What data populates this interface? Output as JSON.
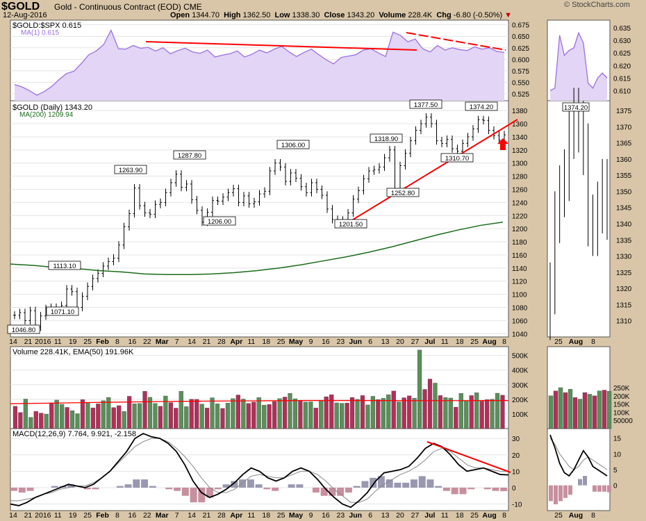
{
  "header": {
    "symbol": "$GOLD",
    "description": "Gold - Continuous Contract (EOD)",
    "exchange": "CME",
    "date": "12-Aug-2016",
    "open_label": "Open",
    "open": "1344.70",
    "high_label": "High",
    "high": "1362.50",
    "low_label": "Low",
    "low": "1338.30",
    "close_label": "Close",
    "close": "1343.20",
    "volume_label": "Volume",
    "volume": "228.4K",
    "chg_label": "Chg",
    "chg": "-6.80 (-0.50%)",
    "brand": "© StockCharts.com"
  },
  "colors": {
    "background": "#d9c6a8",
    "ratio": "#9d6ee0",
    "ratio_fill": "#e2d5f5",
    "trend": "#ff0000",
    "ma200": "#1a6b1a",
    "vol_up": "#5a8f5a",
    "vol_down": "#b03058",
    "macd": "#000000",
    "signal": "#888888",
    "hist_pos": "#9898b0",
    "hist_neg": "#c7909e"
  },
  "chart_data": [
    {
      "type": "line",
      "panel": "ratio",
      "title": "$GOLD:$SPX 0.615",
      "series": [
        {
          "name": "$GOLD:$SPX",
          "values": [
            0.545,
            0.54,
            0.532,
            0.522,
            0.53,
            0.541,
            0.556,
            0.569,
            0.574,
            0.591,
            0.61,
            0.618,
            0.632,
            0.663,
            0.623,
            0.622,
            0.63,
            0.624,
            0.626,
            0.618,
            0.625,
            0.612,
            0.619,
            0.624,
            0.616,
            0.613,
            0.62,
            0.605,
            0.609,
            0.612,
            0.618,
            0.605,
            0.611,
            0.62,
            0.614,
            0.622,
            0.628,
            0.616,
            0.606,
            0.615,
            0.622,
            0.61,
            0.599,
            0.59,
            0.604,
            0.607,
            0.61,
            0.62,
            0.623,
            0.614,
            0.606,
            0.659,
            0.652,
            0.638,
            0.644,
            0.623,
            0.616,
            0.63,
            0.62,
            0.625,
            0.621,
            0.619,
            0.627,
            0.622,
            0.625,
            0.617,
            0.615
          ]
        },
        {
          "name": "MA(1) 0.615",
          "values": []
        }
      ],
      "ylim": [
        0.51,
        0.685
      ],
      "yticks": [
        0.525,
        0.55,
        0.575,
        0.6,
        0.625,
        0.65,
        0.675
      ],
      "inset": {
        "values": [
          0.61,
          0.611,
          0.632,
          0.624,
          0.626,
          0.627,
          0.633,
          0.629,
          0.613,
          0.611,
          0.615,
          0.617,
          0.615
        ],
        "yticks": [
          0.61,
          0.615,
          0.62,
          0.625,
          0.63,
          0.635
        ],
        "ylim": [
          0.606,
          0.638
        ]
      }
    },
    {
      "type": "ohlc",
      "panel": "price",
      "title": "$GOLD (Daily) 1343.20",
      "ma_label": "MA(200) 1209.94",
      "series": [
        {
          "name": "$GOLD",
          "close": [
            1068,
            1072,
            1060,
            1075,
            1050,
            1067,
            1078,
            1080,
            1077,
            1083,
            1108,
            1104,
            1080,
            1097,
            1112,
            1124,
            1132,
            1143,
            1150,
            1155,
            1175,
            1203,
            1223,
            1262,
            1235,
            1224,
            1222,
            1237,
            1240,
            1255,
            1270,
            1283,
            1263,
            1268,
            1244,
            1228,
            1210,
            1225,
            1243,
            1242,
            1248,
            1255,
            1261,
            1240,
            1250,
            1238,
            1241,
            1253,
            1257,
            1288,
            1300,
            1294,
            1272,
            1285,
            1277,
            1264,
            1255,
            1270,
            1260,
            1251,
            1230,
            1214,
            1213,
            1207,
            1224,
            1245,
            1258,
            1276,
            1288,
            1290,
            1294,
            1308,
            1320,
            1260,
            1296,
            1315,
            1334,
            1350,
            1360,
            1370,
            1360,
            1334,
            1330,
            1336,
            1322,
            1318,
            1330,
            1340,
            1352,
            1366,
            1365,
            1350,
            1342,
            1335,
            1343
          ]
        },
        {
          "name": "MA(200)",
          "values": [
            1146,
            1144,
            1141,
            1139,
            1136,
            1134,
            1131,
            1130,
            1130,
            1131,
            1133,
            1136,
            1140,
            1145,
            1151,
            1157,
            1164,
            1172,
            1181,
            1190,
            1198,
            1205,
            1209.94
          ]
        }
      ],
      "ylim": [
        1035,
        1395
      ],
      "yticks": [
        1040,
        1060,
        1080,
        1100,
        1120,
        1140,
        1160,
        1180,
        1200,
        1220,
        1240,
        1260,
        1280,
        1300,
        1320,
        1340,
        1360,
        1380
      ],
      "annotations": [
        "1046.80",
        "1113.10",
        "1071.10",
        "1263.90",
        "1287.80",
        "1206.00",
        "1306.00",
        "1318.90",
        "1201.50",
        "1252.80",
        "1377.50",
        "1310.70",
        "1374.20"
      ],
      "inset": {
        "close": [
          1320,
          1342,
          1350,
          1355,
          1368,
          1374,
          1370,
          1363,
          1341,
          1338,
          1345,
          1352,
          1343
        ],
        "yticks": [
          1310,
          1315,
          1320,
          1325,
          1330,
          1335,
          1340,
          1345,
          1350,
          1355,
          1360,
          1365,
          1370,
          1375
        ],
        "ylim": [
          1305,
          1378
        ],
        "annotation": "1374.20"
      }
    },
    {
      "type": "bar",
      "panel": "volume",
      "title": "Volume 228.41K, EMA(50) 191.96K",
      "series": [
        {
          "name": "Volume",
          "values": [
            153,
            110,
            202,
            77,
            118,
            106,
            99,
            171,
            195,
            166,
            145,
            123,
            102,
            198,
            180,
            142,
            169,
            191,
            213,
            144,
            157,
            117,
            221,
            170,
            172,
            255,
            214,
            172,
            153,
            223,
            178,
            140,
            255,
            150,
            201,
            200,
            168,
            141,
            211,
            170,
            138,
            175,
            205,
            230,
            202,
            172,
            182,
            212,
            161,
            165,
            185,
            205,
            216,
            241,
            204,
            193,
            182,
            183,
            141,
            191,
            218,
            232,
            176,
            173,
            175,
            213,
            200,
            226,
            162,
            221,
            198,
            207,
            232,
            257,
            183,
            211,
            224,
            208,
            537,
            268,
            339,
            311,
            226,
            213,
            209,
            147,
            241,
            191,
            226,
            245,
            187,
            198,
            201,
            242,
            228.41
          ]
        }
      ],
      "ema": [
        170,
        175,
        180,
        185,
        188,
        190,
        192,
        192,
        191,
        191,
        192
      ],
      "ylim": [
        0,
        560
      ],
      "ytick_labels": [
        "100K",
        "200K",
        "300K",
        "400K",
        "500K"
      ],
      "inset_ytick_labels": [
        "50000",
        "100K",
        "150K",
        "200K",
        "250K"
      ]
    },
    {
      "type": "line",
      "panel": "macd",
      "title": "MACD(12,26,9) 7.764, 9.921, -2.158",
      "series": [
        {
          "name": "MACD",
          "values": [
            -10,
            -11,
            -9,
            -6,
            -4,
            -2,
            0,
            2,
            1,
            0,
            2,
            6,
            10,
            16,
            22,
            30,
            33,
            31,
            30,
            27,
            22,
            14,
            4,
            -3,
            -6,
            -4,
            -1,
            3,
            8,
            12,
            10,
            6,
            4,
            6,
            10,
            12,
            10,
            5,
            -1,
            -6,
            -10,
            -12,
            -8,
            -3,
            4,
            9,
            10,
            11,
            13,
            18,
            24,
            27,
            25,
            20,
            14,
            10,
            11,
            12,
            10,
            8,
            7.764
          ]
        },
        {
          "name": "Signal",
          "values": [
            -8,
            -8,
            -7,
            -6,
            -4,
            -3,
            -1,
            0,
            1,
            1,
            3,
            6,
            10,
            15,
            20,
            25,
            28,
            30,
            30,
            28,
            24,
            19,
            13,
            6,
            0,
            -3,
            -3,
            -1,
            3,
            7,
            8,
            7,
            6,
            6,
            8,
            10,
            10,
            8,
            4,
            -1,
            -5,
            -9,
            -9,
            -7,
            -2,
            2,
            5,
            8,
            10,
            13,
            17,
            22,
            24,
            22,
            18,
            14,
            12,
            12,
            11,
            10,
            9.921
          ]
        },
        {
          "name": "Histogram",
          "values": [
            -2,
            -3,
            -2,
            0,
            0,
            1,
            1,
            2,
            0,
            -1,
            -1,
            0,
            0,
            1,
            2,
            5,
            5,
            1,
            0,
            -1,
            -2,
            -5,
            -9,
            -9,
            -6,
            -1,
            2,
            4,
            5,
            5,
            2,
            -1,
            -2,
            0,
            2,
            2,
            0,
            -3,
            -5,
            -5,
            -5,
            -3,
            1,
            4,
            6,
            7,
            5,
            3,
            3,
            5,
            7,
            5,
            1,
            -2,
            -4,
            -4,
            -1,
            0,
            -1,
            -2,
            -2.158
          ]
        }
      ],
      "ylim": [
        -14,
        36
      ],
      "yticks": [
        -10,
        0,
        10,
        20,
        30
      ],
      "inset_yticks": [
        0,
        5,
        10,
        15
      ]
    }
  ],
  "x_axis": {
    "labels": [
      "14",
      "21",
      "2016",
      "11",
      "19",
      "25",
      "Feb",
      "8",
      "16",
      "22",
      "Mar",
      "7",
      "14",
      "21",
      "28",
      "Apr",
      "11",
      "18",
      "25",
      "May",
      "9",
      "16",
      "23",
      "Jun",
      "6",
      "13",
      "20",
      "27",
      "Jul",
      "11",
      "18",
      "25",
      "Aug",
      "8"
    ],
    "inset_labels": [
      "25",
      "Aug",
      "8"
    ]
  }
}
